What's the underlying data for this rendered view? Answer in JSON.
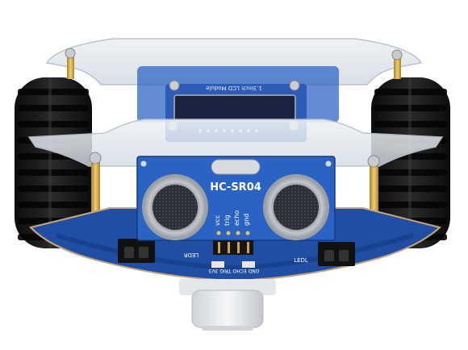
{
  "image": {
    "subject": "Robot car front view",
    "colors": {
      "background": "#ffffff",
      "tire": "#1c1c1c",
      "pcb": "#1f4ea3",
      "pcb_dark": "#163a80",
      "acrylic": "#dfe6ec",
      "standoff": "#d9b24a",
      "sensor_can": "#c9ccd0",
      "oled": "#1a2440"
    }
  },
  "labels": {
    "sensor_model": "HC-SR04",
    "pin_vcc": "vcc",
    "pin_trig": "trig",
    "pin_echo": "echo",
    "pin_gnd": "gnd",
    "lcd_module": "1.3inch LCD Module",
    "led_right": "LEDL",
    "led_left": "LEDR",
    "silk_bottom": "GND ECHO TRIG 3V3"
  }
}
